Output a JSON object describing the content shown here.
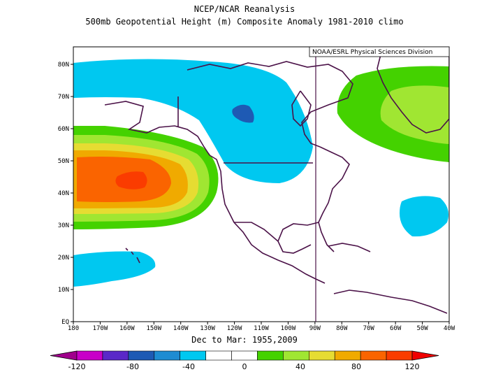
{
  "header": {
    "title": "NCEP/NCAR Reanalysis",
    "subtitle": "500mb Geopotential Height (m) Composite Anomaly 1981-2010 climo"
  },
  "credit": "NOAA/ESRL Physical Sciences Division",
  "date_range": "Dec to Mar: 1955,2009",
  "map": {
    "projection": "equidistant cylindrical",
    "lon_range": [
      "180",
      "40W"
    ],
    "lat_range": [
      "EQ",
      "85N"
    ],
    "lon_ticks": [
      "180",
      "170W",
      "160W",
      "150W",
      "140W",
      "130W",
      "120W",
      "110W",
      "100W",
      "90W",
      "80W",
      "70W",
      "60W",
      "50W",
      "40W"
    ],
    "lat_ticks": [
      "EQ",
      "10N",
      "20N",
      "30N",
      "40N",
      "50N",
      "60N",
      "70N",
      "80N"
    ],
    "coastline_color": "#4b1248",
    "features": [
      {
        "name": "positive anomaly center",
        "region": "North Pacific near 40N 157W",
        "max_class": "> 100"
      },
      {
        "name": "negative anomaly",
        "region": "Alaska / Western Canada",
        "min_class": "-60 to -50"
      },
      {
        "name": "positive anomaly",
        "region": "Greenland / Labrador",
        "max_class": "40 to 60"
      },
      {
        "name": "negative anomaly",
        "region": "Subtropical Pacific near 18N",
        "min_class": "-40 to -20"
      },
      {
        "name": "negative anomaly",
        "region": "Western Atlantic near 33N 55W",
        "min_class": "-40 to -20"
      }
    ]
  },
  "colorbar": {
    "labels": [
      "-120",
      "-80",
      "-40",
      "0",
      "40",
      "80",
      "120"
    ],
    "colors": [
      "#a0008c",
      "#c800c8",
      "#5a28c8",
      "#1e5ab4",
      "#1e8cd2",
      "#00c8f0",
      "#ffffff",
      "#ffffff",
      "#44d200",
      "#a0e632",
      "#e6dc32",
      "#f0aa00",
      "#fa6400",
      "#fa3c00",
      "#f00000"
    ]
  }
}
